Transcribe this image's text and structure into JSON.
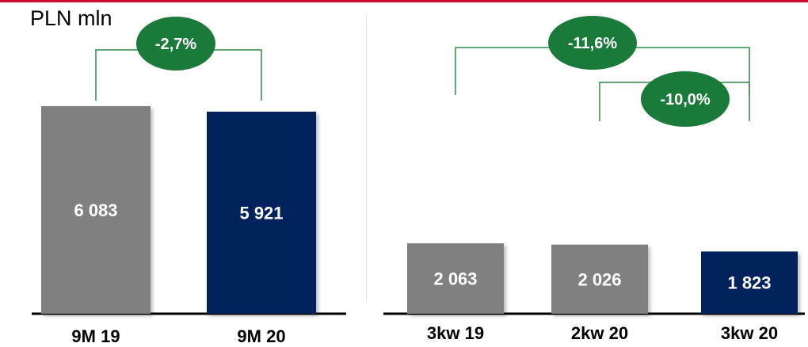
{
  "unit_label": "PLN mln",
  "colors": {
    "past": "#808080",
    "current": "#00205b",
    "badge": "#1a7a3a",
    "bracket": "#2e8b4a",
    "accent_line": "#c8102e"
  },
  "chart_data": [
    {
      "type": "bar",
      "categories": [
        "9M 19",
        "9M 20"
      ],
      "values": [
        6083,
        5921
      ],
      "value_labels": [
        "6 083",
        "5 921"
      ],
      "ylim": [
        0,
        6500
      ],
      "changes": [
        {
          "from": 0,
          "to": 1,
          "label": "-2,7%"
        }
      ]
    },
    {
      "type": "bar",
      "categories": [
        "3kw 19",
        "2kw 20",
        "3kw 20"
      ],
      "values": [
        2063,
        2026,
        1823
      ],
      "value_labels": [
        "2 063",
        "2 026",
        "1 823"
      ],
      "ylim": [
        0,
        6500
      ],
      "changes": [
        {
          "from": 0,
          "to": 2,
          "label": "-11,6%"
        },
        {
          "from": 1,
          "to": 2,
          "label": "-10,0%"
        }
      ]
    }
  ]
}
